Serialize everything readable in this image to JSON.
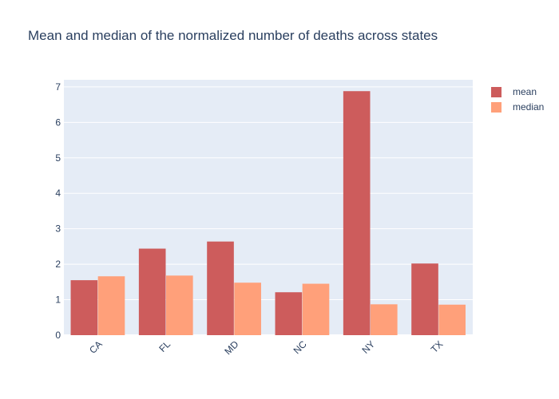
{
  "chart_data": {
    "type": "bar",
    "title": "Mean and median of the normalized number of deaths across states",
    "xlabel": "",
    "ylabel": "",
    "categories": [
      "CA",
      "FL",
      "MD",
      "NC",
      "NY",
      "TX"
    ],
    "series": [
      {
        "name": "mean",
        "color": "#cd5c5c",
        "values": [
          1.55,
          2.44,
          2.64,
          1.21,
          6.88,
          2.02
        ]
      },
      {
        "name": "median",
        "color": "#ffa07a",
        "values": [
          1.66,
          1.68,
          1.48,
          1.45,
          0.87,
          0.86
        ]
      }
    ],
    "ylim": [
      0,
      7.2
    ],
    "yticks": [
      0,
      1,
      2,
      3,
      4,
      5,
      6,
      7
    ],
    "grid": true,
    "legend_position": "top-right",
    "plot_background": "#e5ecf6"
  }
}
